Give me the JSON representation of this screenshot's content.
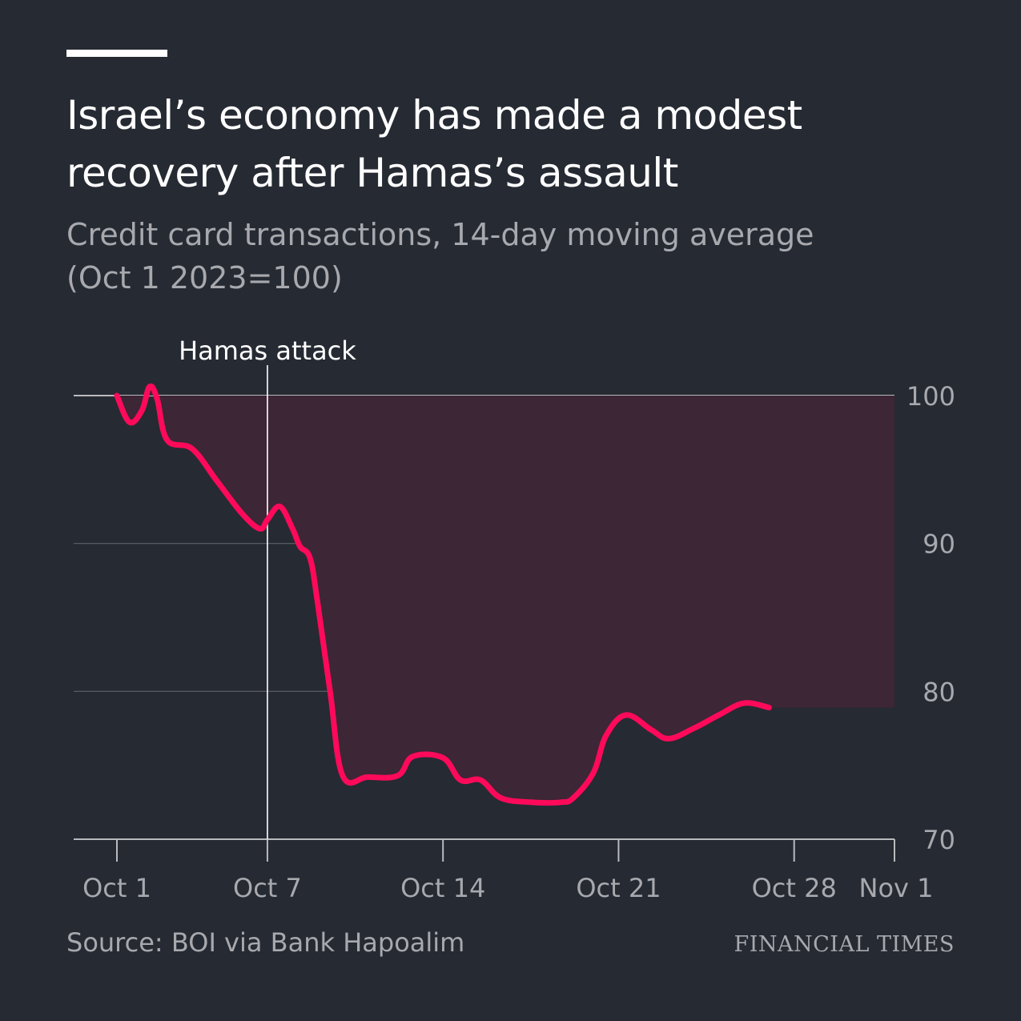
{
  "header": {
    "title": "Israel’s economy has made a modest recovery after Hamas’s assault",
    "subtitle_line1": "Credit card transactions, 14-day moving average",
    "subtitle_line2": "(Oct 1 2023=100)"
  },
  "footer": {
    "source": "Source: BOI via Bank Hapoalim",
    "brand": "FINANCIAL TIMES"
  },
  "colors": {
    "background": "#262a33",
    "line": "#ff0a5a",
    "shade": "#3d2636",
    "grid": "#5c6068",
    "baseline": "#b8babe",
    "axis_text": "#a7a9ae",
    "annotation": "#ffffff"
  },
  "chart_data": {
    "type": "line",
    "title": "Israel’s economy has made a modest recovery after Hamas’s assault",
    "subtitle": "Credit card transactions, 14-day moving average (Oct 1 2023=100)",
    "xlabel": "",
    "ylabel": "",
    "x_ticks": [
      {
        "day": 1,
        "label": "Oct 1"
      },
      {
        "day": 7,
        "label": "Oct 7"
      },
      {
        "day": 14,
        "label": "Oct 14"
      },
      {
        "day": 21,
        "label": "Oct 21"
      },
      {
        "day": 28,
        "label": "Oct 28"
      },
      {
        "day": 32,
        "label": "Nov 1"
      }
    ],
    "xlim": [
      "Sep 30",
      "Nov 1"
    ],
    "ylim": [
      70,
      101
    ],
    "y_ticks": [
      70,
      80,
      90,
      100
    ],
    "grid": true,
    "y_axis_side": "right",
    "shaded_region": "between 100 baseline and series",
    "annotations": [
      {
        "date": "Oct 7",
        "text": "Hamas attack"
      }
    ],
    "series": [
      {
        "points": [
          {
            "date": "Oct 1",
            "day": 1.0,
            "value": 100.0
          },
          {
            "date": "Oct 1",
            "day": 1.5,
            "value": 98.2
          },
          {
            "date": "Oct 2",
            "day": 2.0,
            "value": 99.0
          },
          {
            "date": "Oct 2",
            "day": 2.3,
            "value": 100.6
          },
          {
            "date": "Oct 2",
            "day": 2.6,
            "value": 99.8
          },
          {
            "date": "Oct 3",
            "day": 3.0,
            "value": 97.0
          },
          {
            "date": "Oct 4",
            "day": 4.0,
            "value": 96.4
          },
          {
            "date": "Oct 5",
            "day": 5.0,
            "value": 94.2
          },
          {
            "date": "Oct 6",
            "day": 6.0,
            "value": 92.0
          },
          {
            "date": "Oct 7",
            "day": 6.7,
            "value": 91.0
          },
          {
            "date": "Oct 7",
            "day": 7.0,
            "value": 91.6
          },
          {
            "date": "Oct 8",
            "day": 7.5,
            "value": 92.5
          },
          {
            "date": "Oct 8",
            "day": 8.0,
            "value": 91.0
          },
          {
            "date": "Oct 9",
            "day": 8.3,
            "value": 89.8
          },
          {
            "date": "Oct 9",
            "day": 8.7,
            "value": 89.0
          },
          {
            "date": "Oct 10",
            "day": 9.0,
            "value": 86.0
          },
          {
            "date": "Oct 10",
            "day": 9.5,
            "value": 80.0
          },
          {
            "date": "Oct 11",
            "day": 10.0,
            "value": 74.3
          },
          {
            "date": "Oct 12",
            "day": 11.0,
            "value": 74.2
          },
          {
            "date": "Oct 13",
            "day": 12.2,
            "value": 74.3
          },
          {
            "date": "Oct 14",
            "day": 12.8,
            "value": 75.6
          },
          {
            "date": "Oct 15",
            "day": 14.0,
            "value": 75.5
          },
          {
            "date": "Oct 16",
            "day": 14.7,
            "value": 74.0
          },
          {
            "date": "Oct 17",
            "day": 15.5,
            "value": 74.0
          },
          {
            "date": "Oct 18",
            "day": 16.3,
            "value": 72.8
          },
          {
            "date": "Oct 19",
            "day": 17.5,
            "value": 72.5
          },
          {
            "date": "Oct 20",
            "day": 18.7,
            "value": 72.5
          },
          {
            "date": "Oct 21",
            "day": 19.2,
            "value": 72.8
          },
          {
            "date": "Oct 22",
            "day": 20.0,
            "value": 74.5
          },
          {
            "date": "Oct 22",
            "day": 20.5,
            "value": 77.0
          },
          {
            "date": "Oct 23",
            "day": 21.3,
            "value": 78.4
          },
          {
            "date": "Oct 24",
            "day": 22.3,
            "value": 77.4
          },
          {
            "date": "Oct 25",
            "day": 23.0,
            "value": 76.8
          },
          {
            "date": "Oct 26",
            "day": 24.0,
            "value": 77.5
          },
          {
            "date": "Oct 27",
            "day": 25.0,
            "value": 78.4
          },
          {
            "date": "Oct 28",
            "day": 26.0,
            "value": 79.2
          },
          {
            "date": "Oct 29",
            "day": 27.0,
            "value": 78.9
          }
        ]
      }
    ]
  }
}
